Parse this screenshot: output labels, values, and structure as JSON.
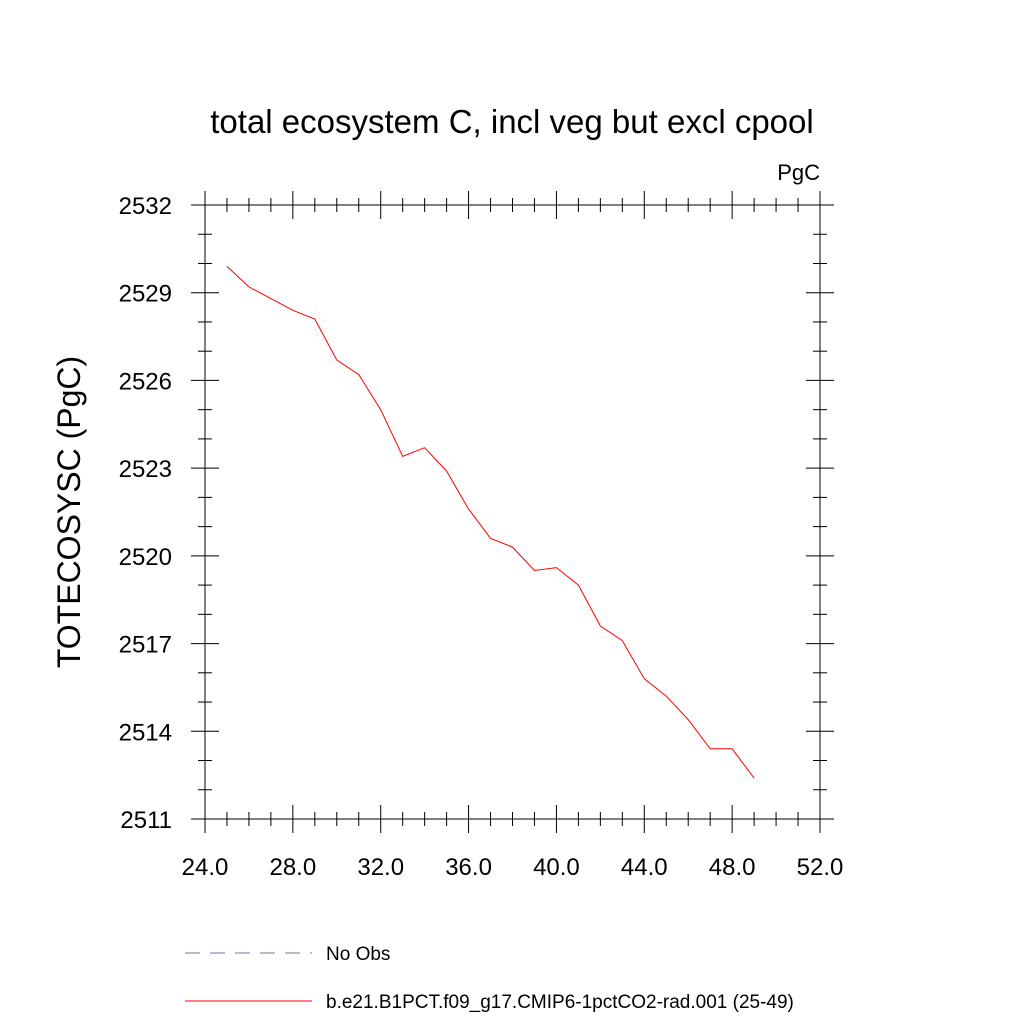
{
  "chart_data": {
    "type": "line",
    "title": "total ecosystem C, incl veg but excl cpool",
    "units_label": "PgC",
    "ylabel": "TOTECOSYSC  (PgC)",
    "xlabel": "",
    "xlim": [
      24,
      52
    ],
    "ylim": [
      2511,
      2532
    ],
    "x_ticks": [
      24,
      28,
      32,
      36,
      40,
      44,
      48,
      52
    ],
    "x_tick_labels": [
      "24.0",
      "28.0",
      "32.0",
      "36.0",
      "40.0",
      "44.0",
      "48.0",
      "52.0"
    ],
    "y_ticks": [
      2511,
      2514,
      2517,
      2520,
      2523,
      2526,
      2529,
      2532
    ],
    "y_tick_labels": [
      "2511",
      "2514",
      "2517",
      "2520",
      "2523",
      "2526",
      "2529",
      "2532"
    ],
    "grid": false,
    "legend_position": "bottom",
    "series": [
      {
        "name": "b.e21.B1PCT.f09_g17.CMIP6-1pctCO2-rad.001 (25-49)",
        "color": "#ff0000",
        "style": "solid",
        "x": [
          25,
          26,
          27,
          28,
          29,
          30,
          31,
          32,
          33,
          34,
          35,
          36,
          37,
          38,
          39,
          40,
          41,
          42,
          43,
          44,
          45,
          46,
          47,
          48,
          49
        ],
        "y": [
          2529.9,
          2529.2,
          2528.8,
          2528.4,
          2528.1,
          2526.7,
          2526.2,
          2525.0,
          2523.4,
          2523.7,
          2522.9,
          2521.6,
          2520.6,
          2520.3,
          2519.5,
          2519.6,
          2519.0,
          2517.6,
          2517.1,
          2515.8,
          2515.2,
          2514.4,
          2513.4,
          2513.4,
          2512.4
        ]
      }
    ],
    "legend": [
      {
        "label": "No Obs",
        "color": "#7070b0",
        "style": "dashed"
      },
      {
        "label": "b.e21.B1PCT.f09_g17.CMIP6-1pctCO2-rad.001 (25-49)",
        "color": "#ff0000",
        "style": "solid"
      }
    ]
  }
}
